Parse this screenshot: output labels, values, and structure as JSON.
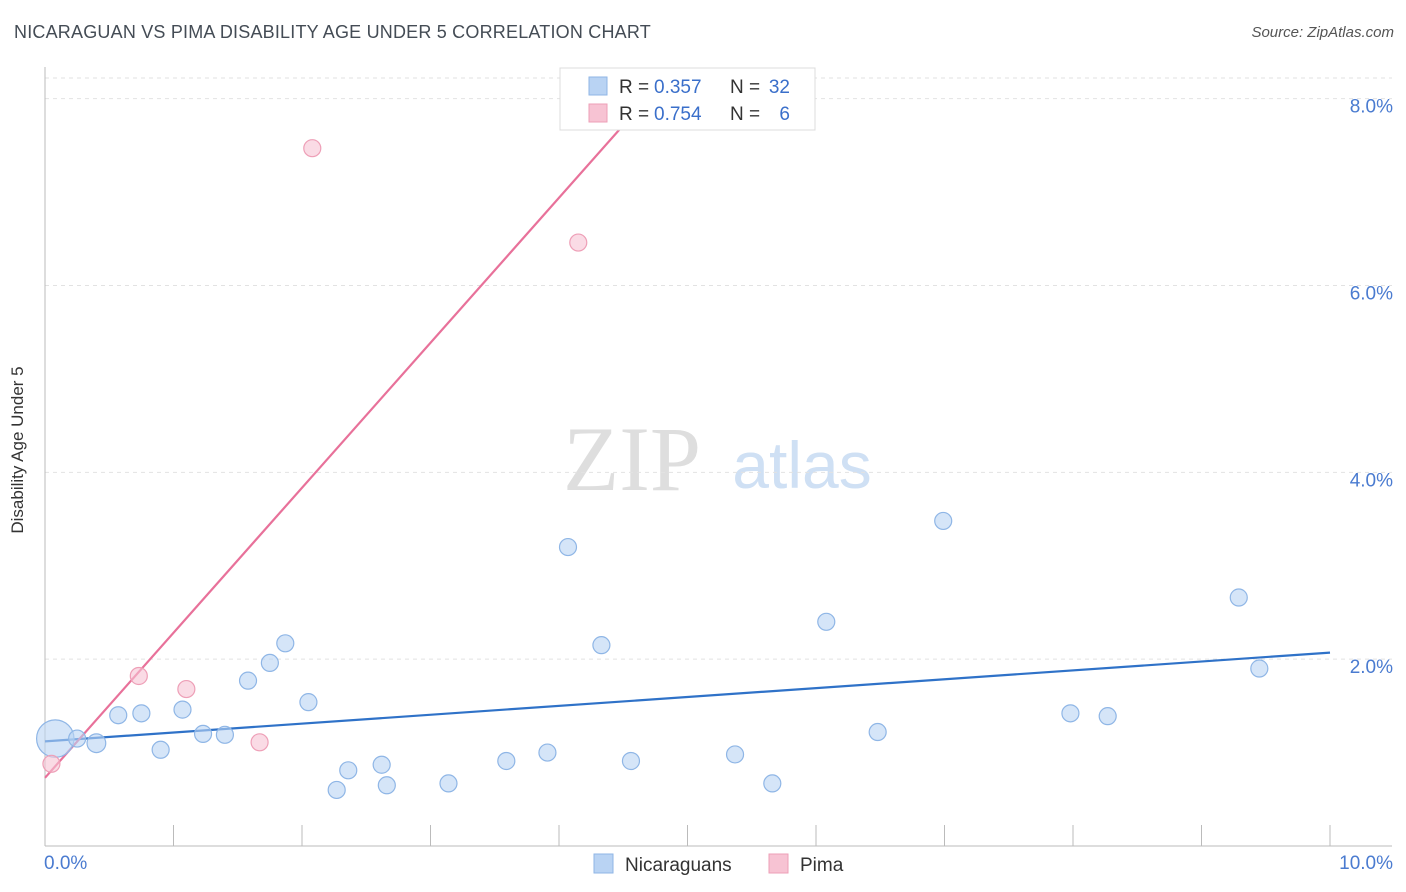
{
  "header": {
    "title": "NICARAGUAN VS PIMA DISABILITY AGE UNDER 5 CORRELATION CHART",
    "source": "Source: ZipAtlas.com"
  },
  "watermark": {
    "zip": "ZIP",
    "atlas": "atlas"
  },
  "legend_box": {
    "rows": [
      {
        "r_label": "R =",
        "r_value": "0.357",
        "n_label": "N =",
        "n_value": "32"
      },
      {
        "r_label": "R =",
        "r_value": "0.754",
        "n_label": "N =",
        "n_value": "6"
      }
    ]
  },
  "colors": {
    "blue_fill": "#b9d3f3",
    "blue_stroke": "#8fb6e6",
    "blue_line": "#2f72c8",
    "pink_fill": "#f7c3d3",
    "pink_stroke": "#ee9fb7",
    "pink_line": "#e8719a",
    "tick_text": "#4a7bd0",
    "grid": "#e2e2e2"
  },
  "chart_data": {
    "type": "scatter",
    "title": "NICARAGUAN VS PIMA DISABILITY AGE UNDER 5 CORRELATION CHART",
    "xlabel": "",
    "ylabel": "Disability Age Under 5",
    "xlim": [
      0,
      10
    ],
    "ylim": [
      0,
      8.2
    ],
    "x_tick_labels": [
      "0.0%",
      "10.0%"
    ],
    "y_ticks": [
      2,
      4,
      6,
      8
    ],
    "y_tick_labels": [
      "2.0%",
      "4.0%",
      "6.0%",
      "8.0%"
    ],
    "legend": [
      "Nicaraguans",
      "Pima"
    ],
    "series": [
      {
        "name": "Nicaraguans",
        "r": 0.357,
        "n": 32,
        "points": [
          {
            "x": 0.08,
            "y": 1.15,
            "s": 2.2
          },
          {
            "x": 0.25,
            "y": 1.15,
            "s": 1.0
          },
          {
            "x": 0.4,
            "y": 1.1,
            "s": 1.1
          },
          {
            "x": 0.57,
            "y": 1.4,
            "s": 1.0
          },
          {
            "x": 0.75,
            "y": 1.42,
            "s": 1.0
          },
          {
            "x": 0.9,
            "y": 1.03,
            "s": 1.0
          },
          {
            "x": 1.07,
            "y": 1.46,
            "s": 1.0
          },
          {
            "x": 1.23,
            "y": 1.2,
            "s": 1.0
          },
          {
            "x": 1.4,
            "y": 1.19,
            "s": 1.0
          },
          {
            "x": 1.58,
            "y": 1.77,
            "s": 1.0
          },
          {
            "x": 1.75,
            "y": 1.96,
            "s": 1.0
          },
          {
            "x": 1.87,
            "y": 2.17,
            "s": 1.0
          },
          {
            "x": 2.05,
            "y": 1.54,
            "s": 1.0
          },
          {
            "x": 2.27,
            "y": 0.6,
            "s": 1.0
          },
          {
            "x": 2.36,
            "y": 0.81,
            "s": 1.0
          },
          {
            "x": 2.62,
            "y": 0.87,
            "s": 1.0
          },
          {
            "x": 2.66,
            "y": 0.65,
            "s": 1.0
          },
          {
            "x": 3.14,
            "y": 0.67,
            "s": 1.0
          },
          {
            "x": 3.59,
            "y": 0.91,
            "s": 1.0
          },
          {
            "x": 3.91,
            "y": 1.0,
            "s": 1.0
          },
          {
            "x": 4.07,
            "y": 3.2,
            "s": 1.0
          },
          {
            "x": 4.33,
            "y": 2.15,
            "s": 1.0
          },
          {
            "x": 4.56,
            "y": 0.91,
            "s": 1.0
          },
          {
            "x": 5.37,
            "y": 0.98,
            "s": 1.0
          },
          {
            "x": 5.66,
            "y": 0.67,
            "s": 1.0
          },
          {
            "x": 6.08,
            "y": 2.4,
            "s": 1.0
          },
          {
            "x": 6.48,
            "y": 1.22,
            "s": 1.0
          },
          {
            "x": 6.99,
            "y": 3.48,
            "s": 1.0
          },
          {
            "x": 7.98,
            "y": 1.42,
            "s": 1.0
          },
          {
            "x": 8.27,
            "y": 1.39,
            "s": 1.0
          },
          {
            "x": 9.29,
            "y": 2.66,
            "s": 1.0
          },
          {
            "x": 9.45,
            "y": 1.9,
            "s": 1.0
          }
        ],
        "trend": {
          "x": [
            0.0,
            10.0
          ],
          "y": [
            1.12,
            2.07
          ]
        }
      },
      {
        "name": "Pima",
        "r": 0.754,
        "n": 6,
        "points": [
          {
            "x": 0.05,
            "y": 0.88,
            "s": 1.0
          },
          {
            "x": 0.73,
            "y": 1.82,
            "s": 1.0
          },
          {
            "x": 1.1,
            "y": 1.68,
            "s": 1.0
          },
          {
            "x": 1.67,
            "y": 1.11,
            "s": 1.0
          },
          {
            "x": 2.08,
            "y": 7.47,
            "s": 1.0
          },
          {
            "x": 4.15,
            "y": 6.46,
            "s": 1.0
          }
        ],
        "trend": {
          "x": [
            0.0,
            4.78
          ],
          "y": [
            0.73,
            8.15
          ]
        }
      }
    ]
  }
}
